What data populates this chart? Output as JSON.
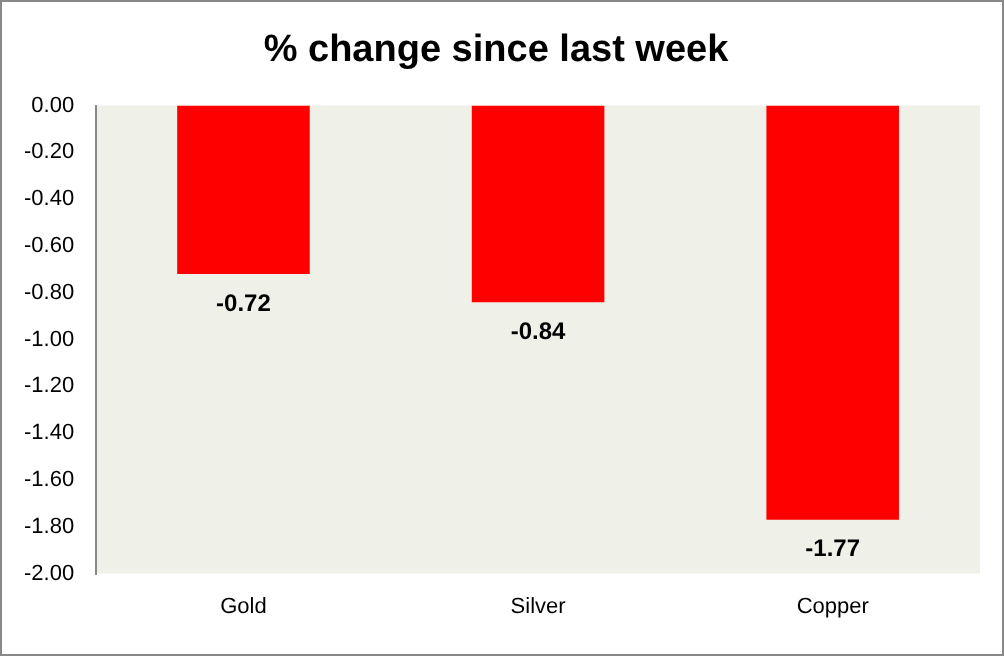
{
  "chart_data": {
    "type": "bar",
    "title": "% change since last week",
    "categories": [
      "Gold",
      "Silver",
      "Copper"
    ],
    "values": [
      -0.72,
      -0.84,
      -1.77
    ],
    "color": "#ff0000",
    "ylim": [
      -2,
      0
    ],
    "yticks": [
      {
        "value": 0,
        "label": "0.00"
      },
      {
        "value": -0.2,
        "label": "-0.20"
      },
      {
        "value": -0.4,
        "label": "-0.40"
      },
      {
        "value": -0.6,
        "label": "-0.60"
      },
      {
        "value": -0.8,
        "label": "-0.80"
      },
      {
        "value": -1,
        "label": "-1.00"
      },
      {
        "value": -1.2,
        "label": "-1.20"
      },
      {
        "value": -1.4,
        "label": "-1.40"
      },
      {
        "value": -1.6,
        "label": "-1.60"
      },
      {
        "value": -1.8,
        "label": "-1.80"
      },
      {
        "value": -2,
        "label": "-2.00"
      }
    ],
    "grid": false,
    "legend": false,
    "data_labels": true
  }
}
